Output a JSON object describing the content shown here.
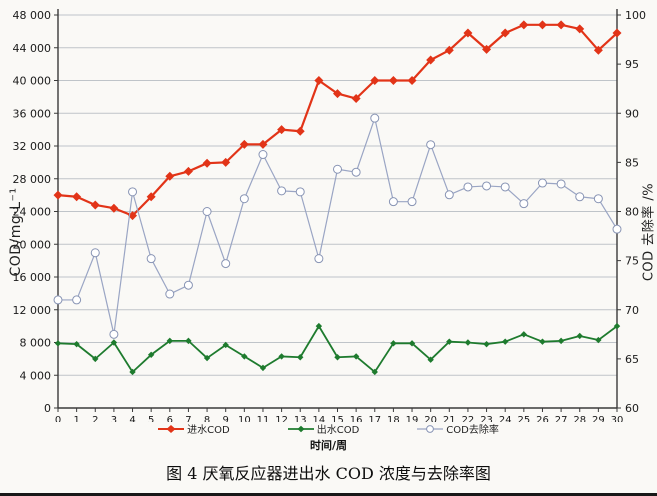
{
  "figure": {
    "caption": "图 4  厌氧反应器进出水 COD 浓度与去除率图"
  },
  "chart_data": {
    "type": "line",
    "x": [
      0,
      1,
      2,
      3,
      4,
      5,
      6,
      7,
      8,
      9,
      10,
      11,
      12,
      13,
      14,
      15,
      16,
      17,
      18,
      19,
      20,
      21,
      22,
      23,
      24,
      25,
      26,
      27,
      28,
      29,
      30
    ],
    "xlabel": "时间/周",
    "ylabel_left": "COD/mg·L⁻¹",
    "ylabel_right": "COD 去除率 /%",
    "y_left_axis": {
      "min": 0,
      "max": 48000,
      "step": 4000
    },
    "y_right_axis": {
      "min": 60,
      "max": 100,
      "step": 5
    },
    "grid": true,
    "legend_position": "bottom",
    "colors": {
      "influent": "#e23418",
      "effluent": "#1e7b2e",
      "removal_line": "#9aa5c4",
      "grid": "#bfc4c9",
      "axis": "#3a3a3a"
    },
    "series": [
      {
        "name": "进水COD",
        "axis": "left",
        "color": "#e23418",
        "marker": "diamond",
        "marker_size": 4.5,
        "line_width": 2.2,
        "values": [
          26000,
          25800,
          24800,
          24400,
          23500,
          25800,
          28300,
          28900,
          29900,
          30000,
          32200,
          32200,
          34000,
          33800,
          40000,
          38400,
          37800,
          40000,
          40000,
          40000,
          42500,
          43700,
          45800,
          43800,
          45800,
          46800,
          46800,
          46800,
          46300,
          43700,
          45800
        ]
      },
      {
        "name": "出水COD",
        "axis": "left",
        "color": "#1e7b2e",
        "marker": "diamond",
        "marker_size": 3.2,
        "line_width": 1.8,
        "values": [
          7900,
          7800,
          6000,
          8000,
          4400,
          6500,
          8200,
          8200,
          6100,
          7700,
          6300,
          4900,
          6300,
          6200,
          10000,
          6200,
          6300,
          4400,
          7900,
          7900,
          5900,
          8100,
          8000,
          7800,
          8100,
          9000,
          8100,
          8200,
          8800,
          8300,
          10000
        ]
      },
      {
        "name": "COD去除率",
        "axis": "right",
        "color": "#9aa5c4",
        "marker": "open-circle",
        "marker_fill": "#ffffff",
        "marker_size": 4,
        "line_width": 1.2,
        "values": [
          71,
          71,
          75.8,
          67.5,
          82,
          75.2,
          71.6,
          72.5,
          80,
          74.7,
          81.3,
          85.8,
          82.1,
          82,
          75.2,
          84.3,
          84,
          89.5,
          81,
          81,
          86.8,
          81.7,
          82.5,
          82.6,
          82.5,
          80.8,
          82.9,
          82.8,
          81.5,
          81.3,
          78.2
        ]
      }
    ]
  }
}
